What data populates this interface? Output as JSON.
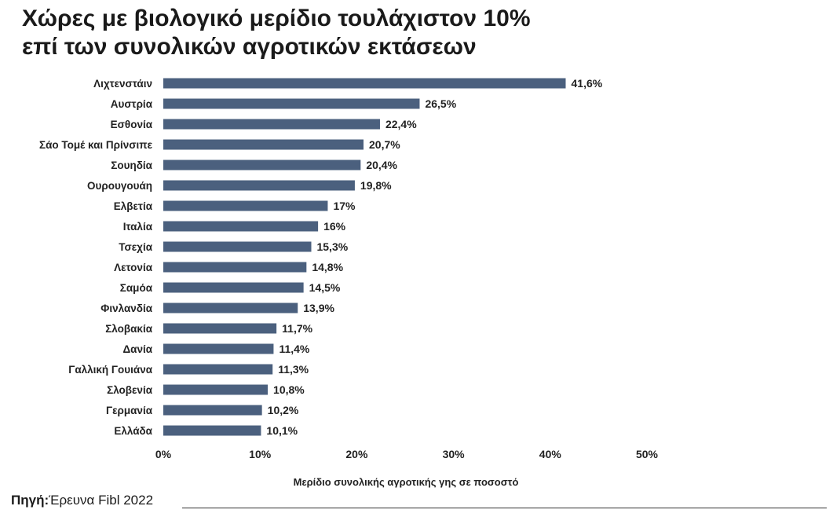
{
  "title_line1": "Χώρες με βιολογικό μερίδιο τουλάχιστον 10%",
  "title_line2": "επί των συνολικών αγροτικών εκτάσεων",
  "source_label": "Πηγή:",
  "source_text": "Έρευνα Fibl 2022",
  "colors": {
    "bar": "#4b607e",
    "text": "#222222"
  },
  "chart_data": {
    "type": "bar",
    "orientation": "horizontal",
    "title": "Χώρες με βιολογικό μερίδιο τουλάχιστον 10% επί των συνολικών αγροτικών εκτάσεων",
    "xlabel": "Μερίδιο συνολικής αγροτικής γης σε ποσοστό",
    "ylabel": "",
    "xlim": [
      0,
      50
    ],
    "grid": false,
    "xticks": [
      "0%",
      "10%",
      "20%",
      "30%",
      "40%",
      "50%"
    ],
    "categories": [
      "Λιχτενστάιν",
      "Αυστρία",
      "Εσθονία",
      "Σάο Τομέ και Πρίνσιπε",
      "Σουηδία",
      "Ουρουγουάη",
      "Ελβετία",
      "Ιταλία",
      "Τσεχία",
      "Λετονία",
      "Σαμόα",
      "Φινλανδία",
      "Σλοβακία",
      "Δανία",
      "Γαλλική Γουιάνα",
      "Σλοβενία",
      "Γερμανία",
      "Ελλάδα"
    ],
    "values": [
      41.6,
      26.5,
      22.4,
      20.7,
      20.4,
      19.8,
      17,
      16,
      15.3,
      14.8,
      14.5,
      13.9,
      11.7,
      11.4,
      11.3,
      10.8,
      10.2,
      10.1
    ],
    "value_labels": [
      "41,6%",
      "26,5%",
      "22,4%",
      "20,7%",
      "20,4%",
      "19,8%",
      "17%",
      "16%",
      "15,3%",
      "14,8%",
      "14,5%",
      "13,9%",
      "11,7%",
      "11,4%",
      "11,3%",
      "10,8%",
      "10,2%",
      "10,1%"
    ]
  }
}
